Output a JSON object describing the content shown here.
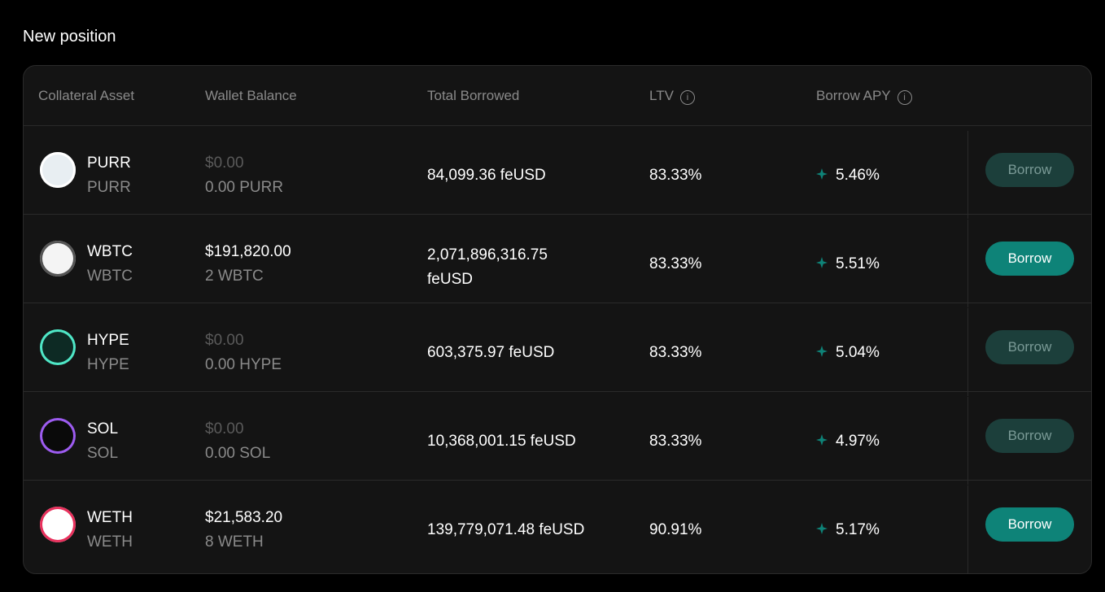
{
  "header": {
    "title": "New position"
  },
  "table": {
    "columns": [
      "Collateral Asset",
      "Wallet Balance",
      "Total Borrowed",
      "LTV",
      "Borrow APY"
    ],
    "rows": [
      {
        "asset": "PURR",
        "symbol": "PURR",
        "usd": "$0.00",
        "amount": "0.00 PURR",
        "borrowed": "84,099.36 feUSD",
        "ltv": "83.33%",
        "apy": "5.46%",
        "action": "Borrow",
        "enabled": false
      },
      {
        "asset": "WBTC",
        "symbol": "WBTC",
        "usd": "$191,820.00",
        "amount": "2 WBTC",
        "borrowed": "2,071,896,316.75 feUSD",
        "ltv": "83.33%",
        "apy": "5.51%",
        "action": "Borrow",
        "enabled": true
      },
      {
        "asset": "HYPE",
        "symbol": "HYPE",
        "usd": "$0.00",
        "amount": "0.00 HYPE",
        "borrowed": "603,375.97 feUSD",
        "ltv": "83.33%",
        "apy": "5.04%",
        "action": "Borrow",
        "enabled": false
      },
      {
        "asset": "SOL",
        "symbol": "SOL",
        "usd": "$0.00",
        "amount": "0.00 SOL",
        "borrowed": "10,368,001.15 feUSD",
        "ltv": "83.33%",
        "apy": "4.97%",
        "action": "Borrow",
        "enabled": false
      },
      {
        "asset": "WETH",
        "symbol": "WETH",
        "usd": "$21,583.20",
        "amount": "8 WETH",
        "borrowed": "139,779,071.48 feUSD",
        "ltv": "90.91%",
        "apy": "5.17%",
        "action": "Borrow",
        "enabled": true
      }
    ]
  }
}
